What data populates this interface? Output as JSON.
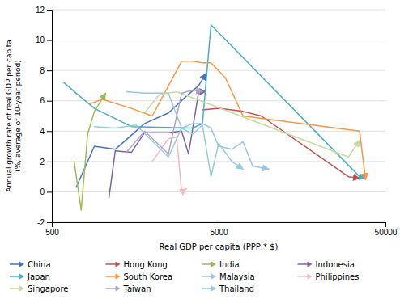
{
  "chart_data": {
    "type": "line",
    "x_label": "Real GDP per capita (PPP,* $)",
    "y_label": "Annual growth rate of real GDP per capita\n(%, average of 10-year period)",
    "log": "x",
    "xlim": [
      500,
      50000
    ],
    "ylim": [
      -2,
      12
    ],
    "xticks": [
      500,
      5000,
      50000
    ],
    "yticks": [
      -2,
      0,
      2,
      4,
      6,
      8,
      10,
      12
    ],
    "grid": "y",
    "legend": "bottom",
    "marker": "arrow",
    "series": [
      {
        "name": "China",
        "color": "#4472C4",
        "x": [
          700,
          900,
          1200,
          1800,
          2500,
          3200,
          3800,
          4200
        ],
        "values": [
          0.3,
          3.0,
          2.8,
          4.5,
          5.2,
          6.3,
          7.0,
          7.8
        ]
      },
      {
        "name": "Hong Kong",
        "color": "#C0504D",
        "x": [
          4000,
          5000,
          6000,
          7000,
          9000,
          30000,
          35000
        ],
        "values": [
          5.4,
          5.5,
          5.4,
          5.3,
          5.0,
          1.0,
          0.9
        ]
      },
      {
        "name": "India",
        "color": "#9BBB59",
        "x": [
          680,
          750,
          820,
          900,
          1050
        ],
        "values": [
          2.0,
          -1.2,
          3.8,
          5.3,
          6.5
        ]
      },
      {
        "name": "Indonesia",
        "color": "#8064A2",
        "x": [
          1100,
          1200,
          1500,
          1800,
          2500,
          3000,
          3300,
          3800,
          4200
        ],
        "values": [
          -0.4,
          2.7,
          2.6,
          3.9,
          3.9,
          4.0,
          2.5,
          6.6,
          6.6
        ]
      },
      {
        "name": "Japan",
        "color": "#4BACC6",
        "x": [
          590,
          700,
          900,
          1500,
          3500,
          4000,
          4500,
          35000,
          38000
        ],
        "values": [
          7.2,
          6.5,
          5.5,
          4.3,
          4.2,
          4.5,
          11.0,
          1.0,
          0.9
        ]
      },
      {
        "name": "South Korea",
        "color": "#F79646",
        "x": [
          850,
          1000,
          1500,
          2000,
          3000,
          3500,
          4000,
          4500,
          5500,
          7000,
          35000,
          38000
        ],
        "values": [
          5.8,
          6.1,
          5.5,
          5.0,
          8.6,
          8.6,
          8.5,
          8.5,
          7.5,
          5.0,
          4.0,
          0.8
        ]
      },
      {
        "name": "Malaysia",
        "color": "#9DC3E6",
        "x": [
          1400,
          1800,
          2500,
          3000,
          3500,
          4000,
          4500,
          5000,
          6000,
          7000,
          8000,
          10000
        ],
        "values": [
          6.6,
          6.5,
          6.5,
          4.2,
          4.5,
          4.5,
          4.2,
          3.0,
          2.8,
          3.3,
          1.7,
          1.5
        ]
      },
      {
        "name": "Philippines",
        "color": "#F4B8C1",
        "x": [
          2000,
          2500,
          2800,
          3000,
          3200
        ],
        "values": [
          2.0,
          3.5,
          3.6,
          0.0,
          0.2
        ]
      },
      {
        "name": "Singapore",
        "color": "#C6D9A0",
        "x": [
          1800,
          2200,
          2800,
          30000,
          35000
        ],
        "values": [
          5.2,
          6.4,
          6.6,
          2.3,
          3.4
        ]
      },
      {
        "name": "Taiwan",
        "color": "#B2A1C7",
        "x": [
          1400,
          1800,
          2500,
          3000,
          3500,
          4000
        ],
        "values": [
          2.6,
          4.0,
          2.5,
          6.5,
          6.7,
          6.6
        ]
      },
      {
        "name": "Thailand",
        "color": "#92CDDC",
        "x": [
          900,
          1200,
          1600,
          2500,
          3000,
          3500,
          4000,
          4500,
          5000,
          6000,
          7000
        ],
        "values": [
          4.3,
          4.2,
          4.4,
          2.3,
          4.2,
          3.8,
          4.4,
          1.0,
          3.2,
          2.0,
          1.5
        ]
      }
    ]
  }
}
